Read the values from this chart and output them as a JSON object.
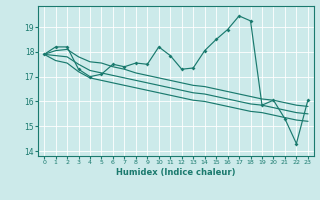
{
  "xlabel": "Humidex (Indice chaleur)",
  "bg_color": "#cceaea",
  "line_color": "#1a7a6e",
  "grid_color": "#ffffff",
  "xlim": [
    -0.5,
    23.5
  ],
  "ylim": [
    13.8,
    19.85
  ],
  "yticks": [
    14,
    15,
    16,
    17,
    18,
    19
  ],
  "xticks": [
    0,
    1,
    2,
    3,
    4,
    5,
    6,
    7,
    8,
    9,
    10,
    11,
    12,
    13,
    14,
    15,
    16,
    17,
    18,
    19,
    20,
    21,
    22,
    23
  ],
  "series1": [
    17.9,
    18.2,
    18.2,
    17.3,
    17.0,
    17.1,
    17.5,
    17.4,
    17.55,
    17.5,
    18.2,
    17.85,
    17.3,
    17.35,
    18.05,
    18.5,
    18.9,
    19.45,
    19.25,
    15.85,
    16.05,
    15.3,
    14.3,
    16.05
  ],
  "series2": [
    17.9,
    18.05,
    18.1,
    17.8,
    17.6,
    17.55,
    17.4,
    17.3,
    17.15,
    17.05,
    16.95,
    16.85,
    16.75,
    16.65,
    16.6,
    16.5,
    16.4,
    16.3,
    16.2,
    16.1,
    16.05,
    15.95,
    15.85,
    15.8
  ],
  "series3": [
    17.9,
    17.85,
    17.8,
    17.5,
    17.25,
    17.15,
    17.05,
    16.95,
    16.85,
    16.75,
    16.65,
    16.55,
    16.45,
    16.35,
    16.3,
    16.2,
    16.1,
    16.0,
    15.9,
    15.85,
    15.75,
    15.65,
    15.55,
    15.5
  ],
  "series4": [
    17.9,
    17.65,
    17.55,
    17.2,
    16.95,
    16.85,
    16.75,
    16.65,
    16.55,
    16.45,
    16.35,
    16.25,
    16.15,
    16.05,
    16.0,
    15.9,
    15.8,
    15.7,
    15.6,
    15.55,
    15.45,
    15.35,
    15.25,
    15.2
  ]
}
